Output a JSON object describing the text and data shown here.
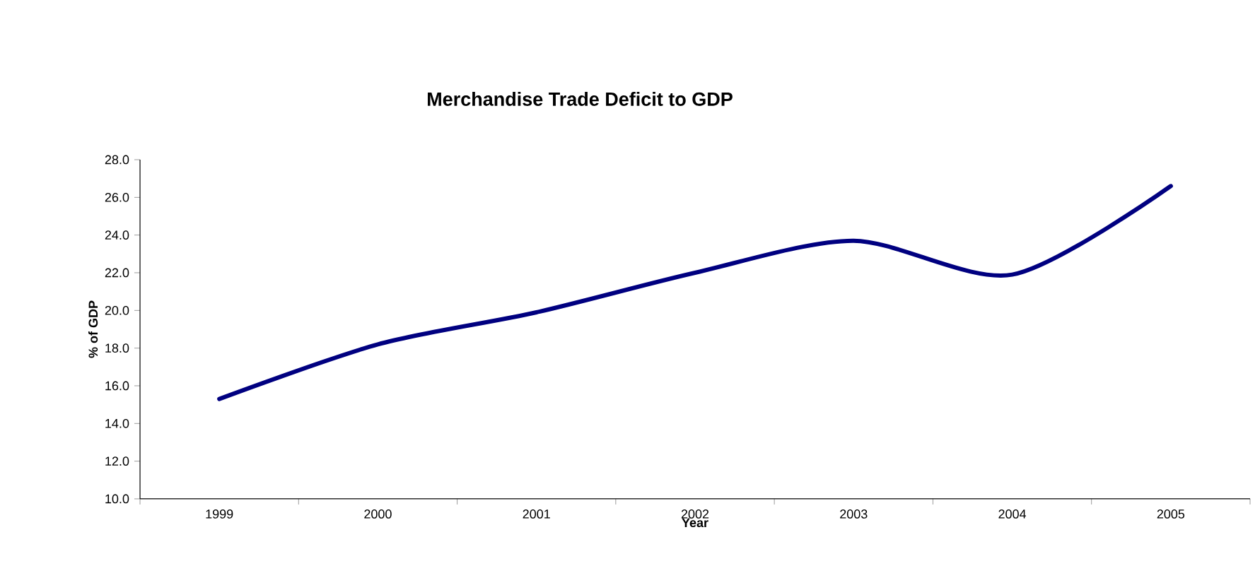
{
  "chart_data": {
    "type": "line",
    "title": "Merchandise Trade Deficit to GDP",
    "xlabel": "Year",
    "ylabel": "% of GDP",
    "categories": [
      "1999",
      "2000",
      "2001",
      "2002",
      "2003",
      "2004",
      "2005"
    ],
    "series": [
      {
        "color": "#000080",
        "values": [
          15.3,
          18.2,
          19.9,
          22.0,
          23.7,
          21.9,
          26.6
        ]
      }
    ],
    "ylim": [
      10,
      28
    ],
    "yticks": [
      {
        "value": 10,
        "label": "10.0"
      },
      {
        "value": 12,
        "label": "12.0"
      },
      {
        "value": 14,
        "label": "14.0"
      },
      {
        "value": 16,
        "label": "16.0"
      },
      {
        "value": 18,
        "label": "18.0"
      },
      {
        "value": 20,
        "label": "20.0"
      },
      {
        "value": 22,
        "label": "22.0"
      },
      {
        "value": 24,
        "label": "24.0"
      },
      {
        "value": 26,
        "label": "26.0"
      },
      {
        "value": 28,
        "label": "28.0"
      }
    ],
    "grid": false,
    "marker": "none",
    "line_style": "solid"
  }
}
